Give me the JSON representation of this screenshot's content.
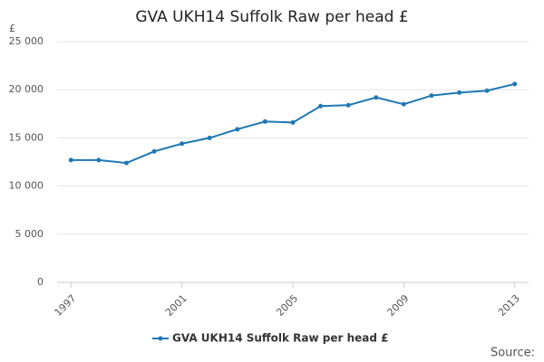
{
  "chart_data": {
    "type": "line",
    "title": "GVA UKH14 Suffolk Raw per head £",
    "y_unit_label": "£",
    "source": "Source:",
    "x": [
      1997,
      1998,
      1999,
      2000,
      2001,
      2002,
      2003,
      2004,
      2005,
      2006,
      2007,
      2008,
      2009,
      2010,
      2011,
      2012,
      2013
    ],
    "series": [
      {
        "name": "GVA UKH14 Suffolk Raw per head £",
        "color": "#1f78b4",
        "values": [
          12700,
          12700,
          12400,
          13600,
          14400,
          15000,
          15900,
          16700,
          16600,
          18300,
          18400,
          19200,
          18500,
          19400,
          19700,
          19900,
          20600
        ]
      }
    ],
    "xlim": [
      1996.5,
      2013.5
    ],
    "xticks": [
      1997,
      2001,
      2005,
      2009,
      2013
    ],
    "ylim": [
      0,
      25000
    ],
    "yticks": [
      0,
      {
        "value": 5000,
        "label": "5 000"
      },
      {
        "value": 10000,
        "label": "10 000"
      },
      {
        "value": 15000,
        "label": "15 000"
      },
      {
        "value": 20000,
        "label": "20 000"
      },
      {
        "value": 25000,
        "label": "25 000"
      }
    ],
    "grid": true
  }
}
